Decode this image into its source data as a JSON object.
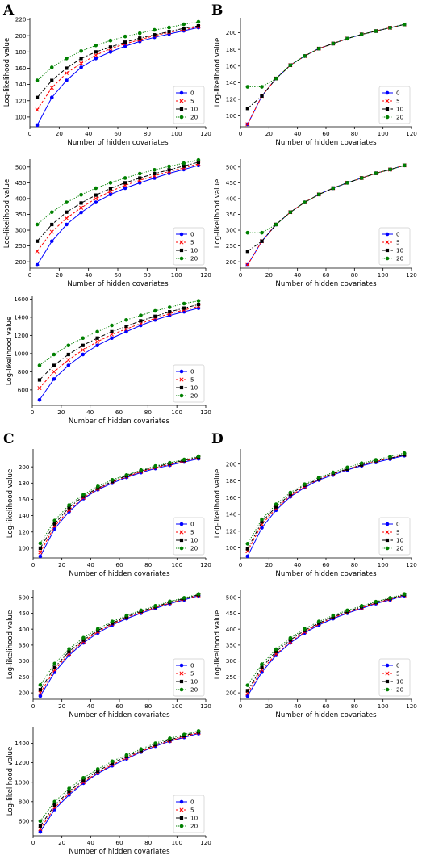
{
  "panel_letters": [
    "A",
    "B",
    "C",
    "D"
  ],
  "colors": {
    "0": "#0000ff",
    "5": "#ff0000",
    "10": "#000000",
    "20": "#008000"
  },
  "legend": [
    "0",
    "5",
    "10",
    "20"
  ],
  "chart_data": [
    {
      "type": "line",
      "panel": "A",
      "xlabel": "Number of hidden covariates",
      "ylabel": "Log-likelihood value",
      "xlim": [
        0,
        120
      ],
      "ylim": [
        88,
        222
      ],
      "xticks": [
        0,
        20,
        40,
        60,
        80,
        100,
        120
      ],
      "yticks": [
        100,
        120,
        140,
        160,
        180,
        200,
        220
      ],
      "x": [
        5,
        15,
        25,
        35,
        45,
        55,
        65,
        75,
        85,
        95,
        105,
        115
      ],
      "series": [
        {
          "name": "0",
          "values": [
            90,
            124,
            145,
            161,
            172,
            180,
            187,
            193,
            198,
            202,
            206,
            210
          ]
        },
        {
          "name": "5",
          "values": [
            109,
            136,
            154,
            166,
            176,
            184,
            190,
            195,
            200,
            204,
            207,
            211
          ]
        },
        {
          "name": "10",
          "values": [
            124,
            145,
            160,
            172,
            180,
            186,
            192,
            197,
            201,
            205,
            209,
            212
          ]
        },
        {
          "name": "20",
          "values": [
            145,
            161,
            172,
            181,
            188,
            194,
            199,
            203,
            207,
            210,
            214,
            217
          ]
        }
      ]
    },
    {
      "type": "line",
      "panel": "B",
      "xlabel": "Number of hidden covariates",
      "ylabel": "Log-likelihood value",
      "xlim": [
        0,
        120
      ],
      "ylim": [
        87,
        218
      ],
      "xticks": [
        0,
        20,
        40,
        60,
        80,
        100,
        120
      ],
      "yticks": [
        100,
        120,
        140,
        160,
        180,
        200
      ],
      "x": [
        5,
        15,
        25,
        35,
        45,
        55,
        65,
        75,
        85,
        95,
        105,
        115
      ],
      "series": [
        {
          "name": "0",
          "values": [
            90,
            124,
            145,
            161,
            172,
            181,
            187,
            193,
            198,
            202,
            206,
            210
          ]
        },
        {
          "name": "5",
          "values": [
            90,
            124,
            145,
            161,
            172,
            181,
            187,
            193,
            198,
            202,
            206,
            210
          ]
        },
        {
          "name": "10",
          "values": [
            109,
            124,
            145,
            161,
            172,
            181,
            187,
            193,
            198,
            202,
            206,
            210
          ]
        },
        {
          "name": "20",
          "values": [
            135,
            135,
            145,
            161,
            172,
            181,
            187,
            193,
            198,
            202,
            206,
            210
          ]
        }
      ]
    },
    {
      "type": "line",
      "panel": "A",
      "xlabel": "Number of hidden covariates",
      "ylabel": "Log-likelihood value",
      "xlim": [
        0,
        120
      ],
      "ylim": [
        180,
        525
      ],
      "xticks": [
        0,
        20,
        40,
        60,
        80,
        100,
        120
      ],
      "yticks": [
        200,
        250,
        300,
        350,
        400,
        450,
        500
      ],
      "x": [
        5,
        15,
        25,
        35,
        45,
        55,
        65,
        75,
        85,
        95,
        105,
        115
      ],
      "series": [
        {
          "name": "0",
          "values": [
            190,
            265,
            318,
            356,
            388,
            413,
            433,
            450,
            465,
            480,
            492,
            505
          ]
        },
        {
          "name": "5",
          "values": [
            233,
            295,
            338,
            371,
            400,
            423,
            442,
            458,
            472,
            486,
            497,
            510
          ]
        },
        {
          "name": "10",
          "values": [
            265,
            318,
            357,
            386,
            411,
            432,
            450,
            465,
            479,
            491,
            503,
            515
          ]
        },
        {
          "name": "20",
          "values": [
            318,
            357,
            388,
            412,
            433,
            450,
            465,
            479,
            491,
            502,
            512,
            522
          ]
        }
      ]
    },
    {
      "type": "line",
      "panel": "B",
      "xlabel": "Number of hidden covariates",
      "ylabel": "Log-likelihood value",
      "xlim": [
        0,
        120
      ],
      "ylim": [
        180,
        525
      ],
      "xticks": [
        0,
        20,
        40,
        60,
        80,
        100,
        120
      ],
      "yticks": [
        200,
        250,
        300,
        350,
        400,
        450,
        500
      ],
      "x": [
        5,
        15,
        25,
        35,
        45,
        55,
        65,
        75,
        85,
        95,
        105,
        115
      ],
      "series": [
        {
          "name": "0",
          "values": [
            190,
            265,
            318,
            357,
            388,
            413,
            433,
            450,
            465,
            480,
            492,
            505
          ]
        },
        {
          "name": "5",
          "values": [
            190,
            265,
            318,
            357,
            388,
            413,
            433,
            450,
            465,
            480,
            492,
            505
          ]
        },
        {
          "name": "10",
          "values": [
            233,
            265,
            318,
            357,
            388,
            413,
            433,
            450,
            465,
            480,
            492,
            505
          ]
        },
        {
          "name": "20",
          "values": [
            292,
            292,
            318,
            357,
            388,
            413,
            433,
            450,
            465,
            480,
            492,
            505
          ]
        }
      ]
    },
    {
      "type": "line",
      "panel": "A",
      "xlabel": "Number of hidden covariates",
      "ylabel": "Log-likelihood value",
      "xlim": [
        0,
        120
      ],
      "ylim": [
        430,
        1630
      ],
      "xticks": [
        0,
        20,
        40,
        60,
        80,
        100,
        120
      ],
      "yticks": [
        600,
        800,
        1000,
        1200,
        1400,
        1600
      ],
      "x": [
        5,
        15,
        25,
        35,
        45,
        55,
        65,
        75,
        85,
        95,
        105,
        115
      ],
      "series": [
        {
          "name": "0",
          "values": [
            490,
            720,
            870,
            990,
            1090,
            1170,
            1240,
            1310,
            1370,
            1420,
            1460,
            1500
          ]
        },
        {
          "name": "5",
          "values": [
            620,
            800,
            930,
            1040,
            1130,
            1210,
            1270,
            1330,
            1390,
            1440,
            1480,
            1520
          ]
        },
        {
          "name": "10",
          "values": [
            710,
            870,
            990,
            1090,
            1170,
            1240,
            1300,
            1360,
            1410,
            1460,
            1500,
            1540
          ]
        },
        {
          "name": "20",
          "values": [
            870,
            990,
            1090,
            1170,
            1240,
            1310,
            1370,
            1420,
            1470,
            1510,
            1550,
            1580
          ]
        }
      ]
    },
    {
      "type": "line",
      "panel": "C",
      "xlabel": "Number of hidden covariates",
      "ylabel": "Log-likelihood value",
      "xlim": [
        0,
        120
      ],
      "ylim": [
        88,
        222
      ],
      "xticks": [
        0,
        20,
        40,
        60,
        80,
        100,
        120
      ],
      "yticks": [
        100,
        120,
        140,
        160,
        180,
        200
      ],
      "x": [
        5,
        15,
        25,
        35,
        45,
        55,
        65,
        75,
        85,
        95,
        105,
        115
      ],
      "series": [
        {
          "name": "0",
          "values": [
            90,
            124,
            145,
            161,
            172,
            180,
            187,
            193,
            198,
            202,
            206,
            210
          ]
        },
        {
          "name": "5",
          "values": [
            95,
            127,
            147,
            162,
            173,
            181,
            188,
            194,
            199,
            203,
            207,
            211
          ]
        },
        {
          "name": "10",
          "values": [
            100,
            130,
            150,
            164,
            174,
            182,
            189,
            195,
            200,
            204,
            208,
            212
          ]
        },
        {
          "name": "20",
          "values": [
            106,
            134,
            153,
            166,
            176,
            184,
            190,
            196,
            201,
            205,
            209,
            213
          ]
        }
      ]
    },
    {
      "type": "line",
      "panel": "D",
      "xlabel": "Number of hidden covariates",
      "ylabel": "Log-likelihood value",
      "xlim": [
        0,
        120
      ],
      "ylim": [
        88,
        218
      ],
      "xticks": [
        0,
        20,
        40,
        60,
        80,
        100,
        120
      ],
      "yticks": [
        100,
        120,
        140,
        160,
        180,
        200
      ],
      "x": [
        5,
        15,
        25,
        35,
        45,
        55,
        65,
        75,
        85,
        95,
        105,
        115
      ],
      "series": [
        {
          "name": "0",
          "values": [
            90,
            124,
            145,
            161,
            172,
            181,
            187,
            193,
            198,
            202,
            206,
            210
          ]
        },
        {
          "name": "5",
          "values": [
            96,
            128,
            147,
            162,
            173,
            182,
            188,
            194,
            199,
            203,
            207,
            211
          ]
        },
        {
          "name": "10",
          "values": [
            99,
            131,
            149,
            164,
            175,
            182,
            189,
            194,
            199,
            204,
            207,
            211
          ]
        },
        {
          "name": "20",
          "values": [
            105,
            134,
            152,
            166,
            176,
            184,
            190,
            196,
            201,
            205,
            209,
            213
          ]
        }
      ]
    },
    {
      "type": "line",
      "panel": "C",
      "xlabel": "Number of hidden covariates",
      "ylabel": "Log-likelihood value",
      "xlim": [
        0,
        120
      ],
      "ylim": [
        180,
        522
      ],
      "xticks": [
        0,
        20,
        40,
        60,
        80,
        100,
        120
      ],
      "yticks": [
        200,
        250,
        300,
        350,
        400,
        450,
        500
      ],
      "x": [
        5,
        15,
        25,
        35,
        45,
        55,
        65,
        75,
        85,
        95,
        105,
        115
      ],
      "series": [
        {
          "name": "0",
          "values": [
            190,
            265,
            318,
            357,
            388,
            413,
            433,
            450,
            465,
            480,
            492,
            505
          ]
        },
        {
          "name": "5",
          "values": [
            200,
            272,
            323,
            361,
            392,
            416,
            436,
            453,
            468,
            482,
            494,
            506
          ]
        },
        {
          "name": "10",
          "values": [
            210,
            280,
            330,
            366,
            396,
            419,
            439,
            456,
            470,
            484,
            496,
            508
          ]
        },
        {
          "name": "20",
          "values": [
            225,
            292,
            338,
            373,
            401,
            424,
            443,
            459,
            473,
            487,
            498,
            510
          ]
        }
      ]
    },
    {
      "type": "line",
      "panel": "D",
      "xlabel": "Number of hidden covariates",
      "ylabel": "Log-likelihood value",
      "xlim": [
        0,
        120
      ],
      "ylim": [
        180,
        522
      ],
      "xticks": [
        0,
        20,
        40,
        60,
        80,
        100,
        120
      ],
      "yticks": [
        200,
        250,
        300,
        350,
        400,
        450,
        500
      ],
      "x": [
        5,
        15,
        25,
        35,
        45,
        55,
        65,
        75,
        85,
        95,
        105,
        115
      ],
      "series": [
        {
          "name": "0",
          "values": [
            190,
            265,
            318,
            357,
            388,
            413,
            433,
            450,
            465,
            480,
            492,
            505
          ]
        },
        {
          "name": "5",
          "values": [
            198,
            272,
            322,
            360,
            391,
            416,
            436,
            452,
            467,
            482,
            494,
            506
          ]
        },
        {
          "name": "10",
          "values": [
            207,
            280,
            330,
            366,
            396,
            419,
            439,
            455,
            470,
            484,
            496,
            508
          ]
        },
        {
          "name": "20",
          "values": [
            224,
            290,
            337,
            372,
            401,
            424,
            443,
            459,
            473,
            486,
            498,
            510
          ]
        }
      ]
    },
    {
      "type": "line",
      "panel": "C",
      "xlabel": "Number of hidden covariates",
      "ylabel": "Log-likelihood value",
      "xlim": [
        0,
        120
      ],
      "ylim": [
        450,
        1570
      ],
      "xticks": [
        0,
        20,
        40,
        60,
        80,
        100,
        120
      ],
      "yticks": [
        600,
        800,
        1000,
        1200,
        1400
      ],
      "x": [
        5,
        15,
        25,
        35,
        45,
        55,
        65,
        75,
        85,
        95,
        105,
        115
      ],
      "series": [
        {
          "name": "0",
          "values": [
            490,
            720,
            870,
            990,
            1090,
            1170,
            1240,
            1310,
            1370,
            1420,
            1460,
            1500
          ]
        },
        {
          "name": "5",
          "values": [
            520,
            740,
            885,
            1000,
            1100,
            1180,
            1250,
            1315,
            1375,
            1425,
            1468,
            1508
          ]
        },
        {
          "name": "10",
          "values": [
            550,
            765,
            905,
            1020,
            1115,
            1195,
            1265,
            1325,
            1385,
            1435,
            1478,
            1516
          ]
        },
        {
          "name": "20",
          "values": [
            600,
            800,
            935,
            1045,
            1135,
            1215,
            1280,
            1340,
            1400,
            1450,
            1490,
            1525
          ]
        }
      ]
    }
  ]
}
